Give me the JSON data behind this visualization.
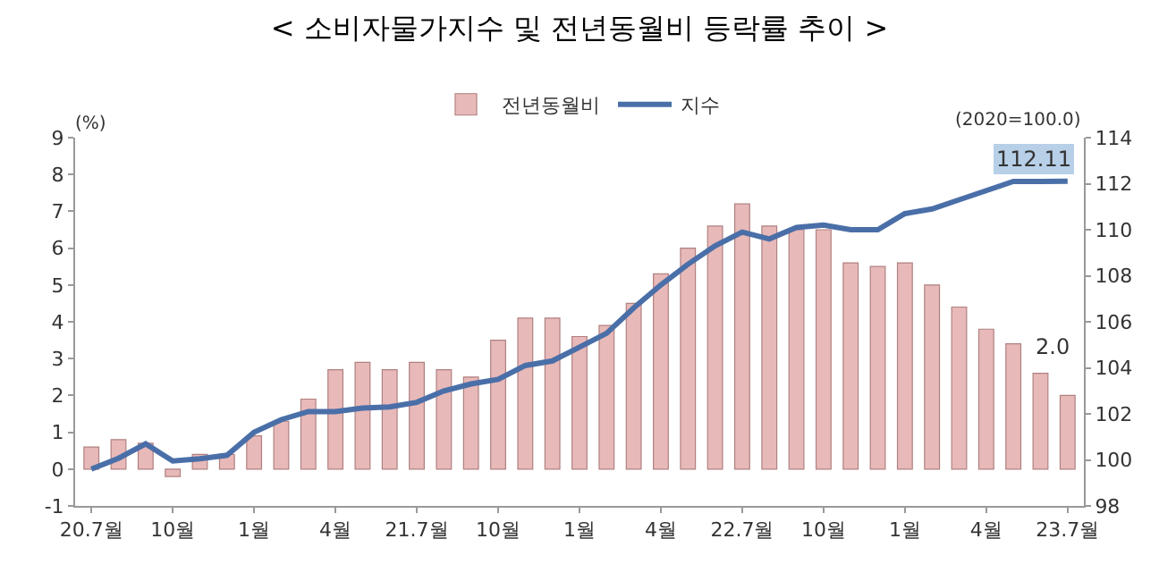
{
  "chart_data": {
    "type": "bar",
    "title": "< 소비자물가지수 및 전년동월비 등락률 추이 >",
    "ylabel": "(%)",
    "y2label": "(2020=100.0)",
    "categories": [
      "20.7월",
      null,
      null,
      "10월",
      null,
      null,
      "1월",
      null,
      null,
      "4월",
      null,
      null,
      "21.7월",
      null,
      null,
      "10월",
      null,
      null,
      "1월",
      null,
      null,
      "4월",
      null,
      null,
      "22.7월",
      null,
      null,
      "10월",
      null,
      null,
      "1월",
      null,
      null,
      "4월",
      null,
      null,
      "23.7월"
    ],
    "series": [
      {
        "name": "전년동월비",
        "color": "#e8b9b9",
        "values": [
          0.6,
          0.8,
          0.7,
          -0.2,
          0.4,
          0.4,
          0.9,
          1.3,
          1.9,
          2.7,
          2.9,
          2.7,
          2.9,
          2.7,
          2.5,
          3.5,
          4.1,
          4.1,
          3.6,
          3.9,
          4.5,
          5.3,
          6.0,
          6.6,
          7.2,
          6.6,
          6.5,
          6.5,
          5.6,
          5.5,
          5.6,
          5.0,
          4.4,
          3.8,
          3.4,
          2.6,
          2.0
        ],
        "value_labels": [
          null,
          null,
          null,
          null,
          null,
          null,
          null,
          null,
          null,
          null,
          null,
          null,
          null,
          null,
          null,
          null,
          null,
          null,
          null,
          null,
          null,
          null,
          null,
          null,
          null,
          null,
          null,
          null,
          null,
          null,
          null,
          null,
          null,
          null,
          null,
          null,
          "2.0"
        ]
      },
      {
        "name": "지수",
        "type": "line",
        "axis": "y2",
        "color": "#4a6fa8",
        "values": [
          99.6,
          100.07,
          100.7,
          99.95,
          100.05,
          100.2,
          101.2,
          101.75,
          102.1,
          102.1,
          102.25,
          102.3,
          102.5,
          103.0,
          103.3,
          103.5,
          104.1,
          104.3,
          104.9,
          105.5,
          106.6,
          107.6,
          108.5,
          109.3,
          109.9,
          109.6,
          110.1,
          110.2,
          110.0,
          110.0,
          110.7,
          110.9,
          111.3,
          111.7,
          112.1,
          112.1,
          112.11
        ],
        "value_labels": [
          null,
          null,
          null,
          null,
          null,
          null,
          null,
          null,
          null,
          null,
          null,
          null,
          null,
          null,
          null,
          null,
          null,
          null,
          null,
          null,
          null,
          null,
          null,
          null,
          null,
          null,
          null,
          null,
          null,
          null,
          null,
          null,
          null,
          null,
          null,
          null,
          "112.11"
        ]
      }
    ],
    "ylim": [
      -1,
      9
    ],
    "yticks": [
      -1,
      0,
      1,
      2,
      3,
      4,
      5,
      6,
      7,
      8,
      9
    ],
    "y2lim": [
      98,
      114
    ],
    "y2ticks": [
      98,
      100,
      102,
      104,
      106,
      108,
      110,
      112,
      114
    ],
    "legend": "top",
    "marker": "none",
    "line_style": "solid"
  }
}
